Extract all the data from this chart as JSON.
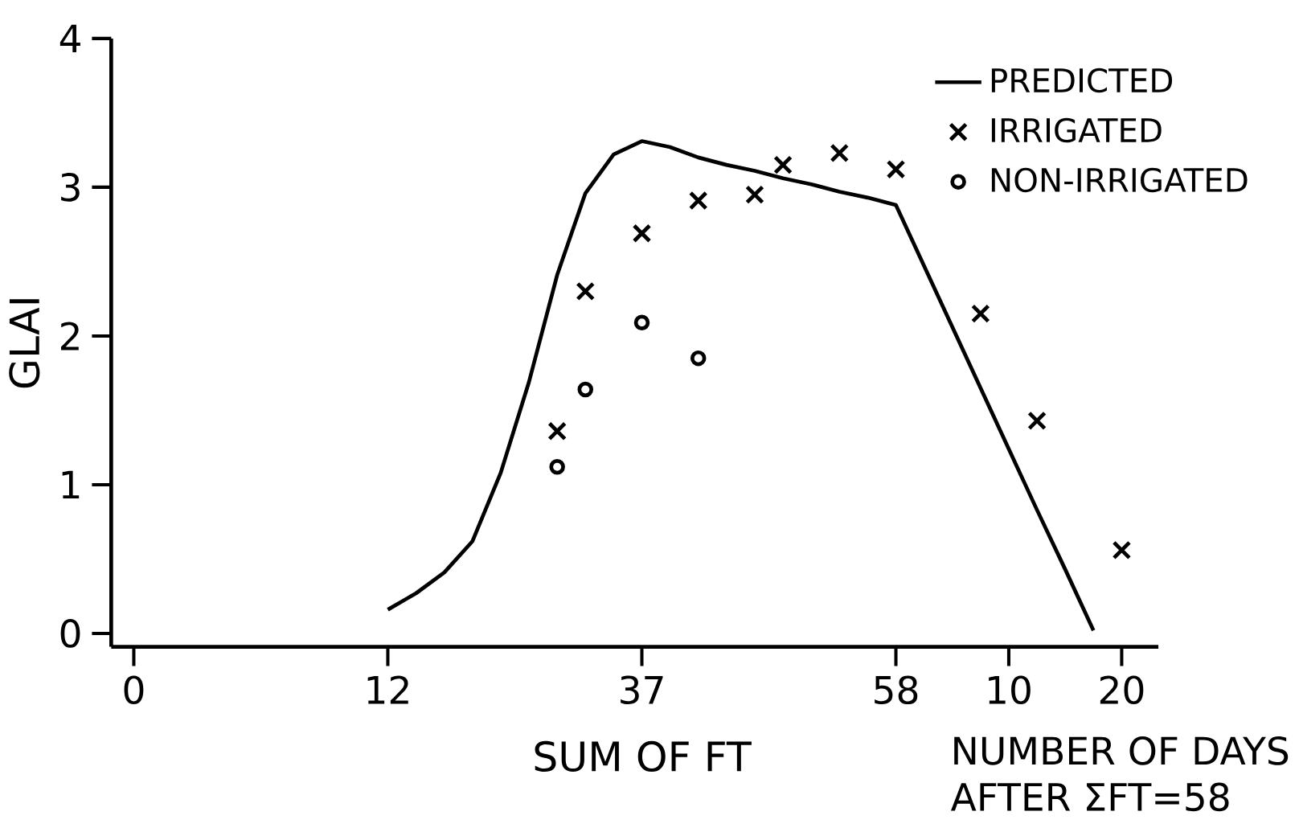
{
  "chart_data": {
    "type": "scatter",
    "xlabel": "SUM OF FT",
    "ylabel": "GLAI",
    "annotations": [
      "NUMBER OF DAYS",
      "AFTER ΣFT=58"
    ],
    "categories": [
      "0",
      null,
      null,
      null,
      null,
      null,
      null,
      null,
      null,
      "12",
      null,
      null,
      null,
      null,
      null,
      null,
      null,
      null,
      "37",
      null,
      null,
      null,
      null,
      null,
      null,
      null,
      null,
      "58",
      null,
      null,
      null,
      "10",
      null,
      null,
      null,
      "20",
      null
    ],
    "ylim": [
      -0.09,
      4
    ],
    "yticks": [
      0,
      1,
      2,
      3,
      4
    ],
    "legend": "top right",
    "grid": false,
    "series": [
      {
        "name": "PREDICTED",
        "type": "line",
        "color": "#000000",
        "marker": "none",
        "line_style": "solid",
        "values": [
          null,
          null,
          null,
          null,
          null,
          null,
          null,
          null,
          null,
          0.16,
          0.27,
          0.41,
          0.62,
          1.08,
          1.69,
          2.41,
          2.96,
          3.22,
          3.31,
          3.27,
          3.2,
          3.15,
          3.11,
          3.06,
          3.02,
          2.97,
          2.93,
          2.88,
          2.47,
          2.06,
          1.65,
          1.24,
          0.83,
          0.43,
          0.02,
          null,
          null
        ]
      },
      {
        "name": "IRRIGATED",
        "color": "#000000",
        "marker": "cross",
        "values": [
          null,
          null,
          null,
          null,
          null,
          null,
          null,
          null,
          null,
          null,
          null,
          null,
          null,
          null,
          null,
          1.36,
          2.3,
          null,
          2.69,
          null,
          2.91,
          null,
          2.95,
          3.15,
          null,
          3.23,
          null,
          3.12,
          null,
          null,
          2.15,
          null,
          1.43,
          null,
          null,
          0.56,
          null
        ]
      },
      {
        "name": "NON-IRRIGATED",
        "color": "#000000",
        "marker": "circle",
        "values": [
          null,
          null,
          null,
          null,
          null,
          null,
          null,
          null,
          null,
          null,
          null,
          null,
          null,
          null,
          null,
          1.12,
          1.64,
          null,
          2.09,
          null,
          1.85,
          null,
          null,
          null,
          null,
          null,
          null,
          null,
          null,
          null,
          null,
          null,
          null,
          null,
          null,
          null,
          null
        ]
      }
    ]
  }
}
